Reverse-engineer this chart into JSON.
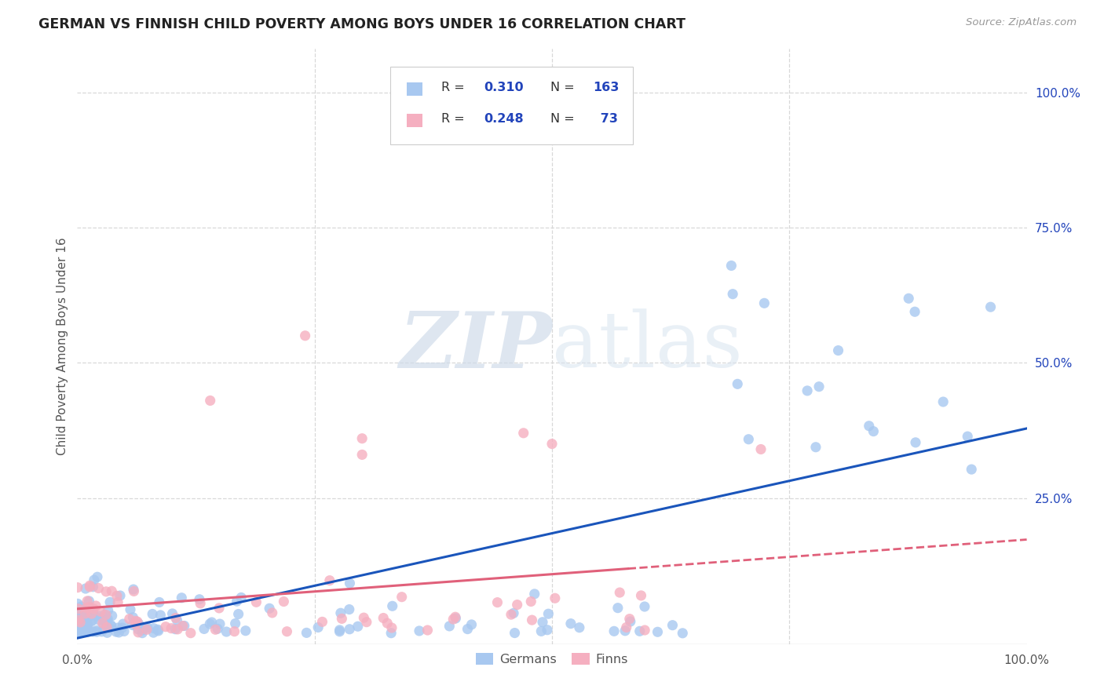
{
  "title": "GERMAN VS FINNISH CHILD POVERTY AMONG BOYS UNDER 16 CORRELATION CHART",
  "source": "Source: ZipAtlas.com",
  "ylabel": "Child Poverty Among Boys Under 16",
  "watermark_zip": "ZIP",
  "watermark_atlas": "atlas",
  "german_color": "#a8c8f0",
  "finn_color": "#f5afc0",
  "german_line_color": "#1a55bb",
  "finn_line_color": "#e0607a",
  "background_color": "#ffffff",
  "grid_color": "#d8d8d8",
  "title_color": "#222222",
  "r_color": "#2244bb",
  "label_color": "#555555",
  "german_R": 0.31,
  "finn_R": 0.248,
  "german_N": 163,
  "finn_N": 73
}
